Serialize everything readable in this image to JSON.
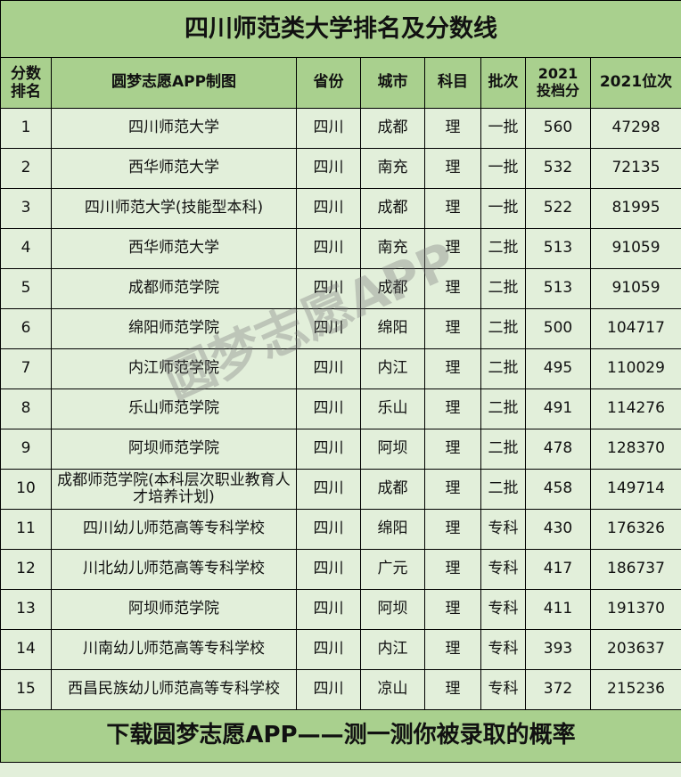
{
  "title": "四川师范类大学排名及分数线",
  "headers": [
    "分数排名",
    "圆梦志愿APP制图",
    "省份",
    "城市",
    "科目",
    "批次",
    "2021投档分",
    "2021位次"
  ],
  "rows": [
    [
      "1",
      "四川师范大学",
      "四川",
      "成都",
      "理",
      "一批",
      "560",
      "47298"
    ],
    [
      "2",
      "西华师范大学",
      "四川",
      "南充",
      "理",
      "一批",
      "532",
      "72135"
    ],
    [
      "3",
      "四川师范大学(技能型本科)",
      "四川",
      "成都",
      "理",
      "一批",
      "522",
      "81995"
    ],
    [
      "4",
      "西华师范大学",
      "四川",
      "南充",
      "理",
      "二批",
      "513",
      "91059"
    ],
    [
      "5",
      "成都师范学院",
      "四川",
      "成都",
      "理",
      "二批",
      "513",
      "91059"
    ],
    [
      "6",
      "绵阳师范学院",
      "四川",
      "绵阳",
      "理",
      "二批",
      "500",
      "104717"
    ],
    [
      "7",
      "内江师范学院",
      "四川",
      "内江",
      "理",
      "二批",
      "495",
      "110029"
    ],
    [
      "8",
      "乐山师范学院",
      "四川",
      "乐山",
      "理",
      "二批",
      "491",
      "114276"
    ],
    [
      "9",
      "阿坝师范学院",
      "四川",
      "阿坝",
      "理",
      "二批",
      "478",
      "128370"
    ],
    [
      "10",
      "成都师范学院(本科层次职业教育人才培养计划)",
      "四川",
      "成都",
      "理",
      "二批",
      "458",
      "149714"
    ],
    [
      "11",
      "四川幼儿师范高等专科学校",
      "四川",
      "绵阳",
      "理",
      "专科",
      "430",
      "176326"
    ],
    [
      "12",
      "川北幼儿师范高等专科学校",
      "四川",
      "广元",
      "理",
      "专科",
      "417",
      "186737"
    ],
    [
      "13",
      "阿坝师范学院",
      "四川",
      "阿坝",
      "理",
      "专科",
      "411",
      "191370"
    ],
    [
      "14",
      "川南幼儿师范高等专科学校",
      "四川",
      "内江",
      "理",
      "专科",
      "393",
      "203637"
    ],
    [
      "15",
      "西昌民族幼儿师范高等专科学校",
      "四川",
      "凉山",
      "理",
      "专科",
      "372",
      "215236"
    ]
  ],
  "footer": "下载圆梦志愿APP——测一测你被录取的概率",
  "watermark": "圆梦志愿APP",
  "colors": {
    "header": "#a9d08e",
    "row": "#e2efda"
  }
}
